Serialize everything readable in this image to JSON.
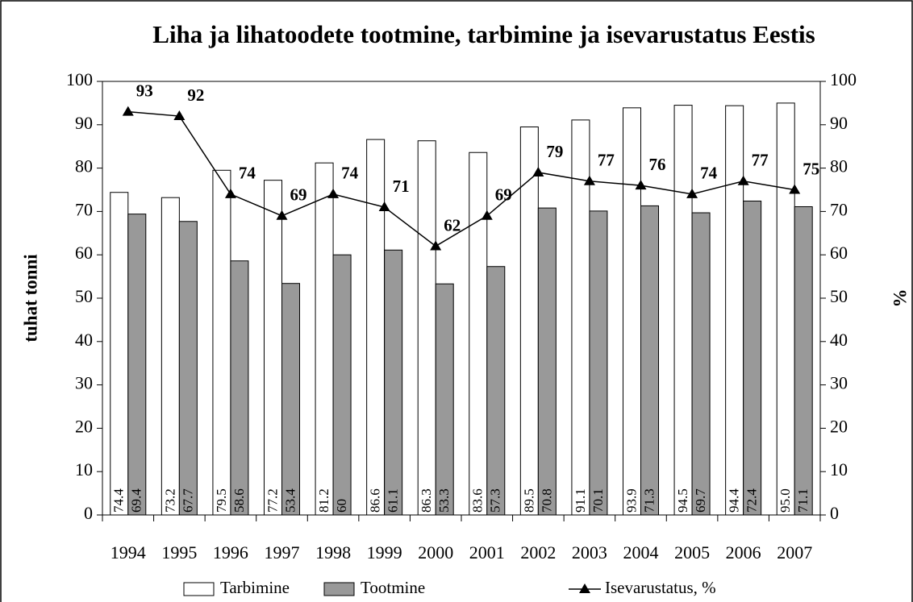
{
  "chart_data": {
    "type": "bar_line",
    "title": "Liha ja lihatoodete tootmine, tarbimine ja isevarustatus Eestis",
    "ylabel": "tuhat tonni",
    "y2label": "%",
    "categories": [
      "1994",
      "1995",
      "1996",
      "1997",
      "1998",
      "1999",
      "2000",
      "2001",
      "2002",
      "2003",
      "2004",
      "2005",
      "2006",
      "2007"
    ],
    "series": [
      {
        "name": "Tarbimine",
        "type": "bar",
        "color": "#ffffff",
        "values": [
          74.4,
          73.2,
          79.5,
          77.2,
          81.2,
          86.6,
          86.3,
          83.6,
          89.5,
          91.1,
          93.9,
          94.5,
          94.4,
          95.0
        ],
        "value_labels": [
          "74.4",
          "73.2",
          "79.5",
          "77.2",
          "81.2",
          "86.6",
          "86.3",
          "83.6",
          "89.5",
          "91.1",
          "93.9",
          "94.5",
          "94.4",
          "95.0"
        ]
      },
      {
        "name": "Tootmine",
        "type": "bar",
        "color": "#999999",
        "values": [
          69.4,
          67.7,
          58.6,
          53.4,
          60,
          61.1,
          53.3,
          57.3,
          70.8,
          70.1,
          71.3,
          69.7,
          72.4,
          71.1
        ]
      },
      {
        "name": "Isevarustatus, %",
        "type": "line",
        "axis": "y2",
        "color": "#000000",
        "values": [
          93,
          92,
          74,
          69,
          74,
          71,
          62,
          69,
          79,
          77,
          76,
          74,
          77,
          75
        ]
      }
    ],
    "ylim": [
      0,
      100
    ],
    "yticks": [
      0,
      10,
      20,
      30,
      40,
      50,
      60,
      70,
      80,
      90,
      100
    ],
    "y2lim": [
      0,
      100
    ],
    "y2ticks": [
      0,
      10,
      20,
      30,
      40,
      50,
      60,
      70,
      80,
      90,
      100
    ]
  }
}
